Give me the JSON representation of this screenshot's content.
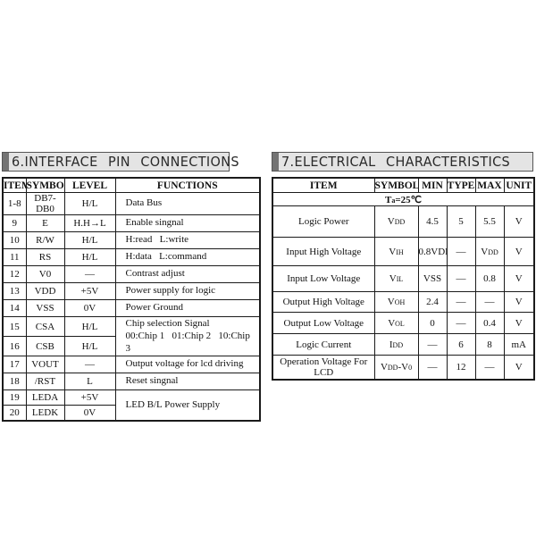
{
  "section6": {
    "title": "6.INTERFACE PIN CONNECTIONS",
    "table": {
      "headers": [
        "ITEM",
        "SYMBOL",
        "LEVEL",
        "FUNCTIONS"
      ],
      "rows": [
        {
          "item": "1-8",
          "symbol": "DB7-DB0",
          "level": "H/L",
          "func": "Data Bus"
        },
        {
          "item": "9",
          "symbol": "E",
          "level": "H.H→L",
          "func": "Enable singnal"
        },
        {
          "item": "10",
          "symbol": "R/W",
          "level": "H/L",
          "func": "H:read   L:write"
        },
        {
          "item": "11",
          "symbol": "RS",
          "level": "H/L",
          "func": "H:data   L:command"
        },
        {
          "item": "12",
          "symbol": "V0",
          "level": "—",
          "func": "Contrast adjust"
        },
        {
          "item": "13",
          "symbol": "VDD",
          "level": "+5V",
          "func": "Power supply for logic"
        },
        {
          "item": "14",
          "symbol": "VSS",
          "level": "0V",
          "func": "Power Ground"
        },
        {
          "item": "15",
          "symbol": "CSA",
          "level": "H/L",
          "func": "Chip selection Signal\n00:Chip 1   01:Chip 2   10:Chip 3",
          "func_rowspan": 2
        },
        {
          "item": "16",
          "symbol": "CSB",
          "level": "H/L"
        },
        {
          "item": "17",
          "symbol": "VOUT",
          "level": "—",
          "func": "Output voltage for lcd driving"
        },
        {
          "item": "18",
          "symbol": "/RST",
          "level": "L",
          "func": "Reset singnal"
        },
        {
          "item": "19",
          "symbol": "LEDA",
          "level": "+5V",
          "func": "LED B/L Power Supply",
          "func_rowspan": 2
        },
        {
          "item": "20",
          "symbol": "LEDK",
          "level": "0V"
        }
      ]
    }
  },
  "section7": {
    "title": "7.ELECTRICAL CHARACTERISTICS",
    "table": {
      "headers": [
        "ITEM",
        "SYMBOL",
        "MIN",
        "TYPE",
        "MAX",
        "UNIT"
      ],
      "condition": "T~a~=25℃",
      "rows": [
        {
          "item": "Logic Power",
          "symbol": "V~DD~",
          "min": "4.5",
          "type": "5",
          "max": "5.5",
          "unit": "V"
        },
        {
          "item": "Input High Voltage",
          "symbol": "V~IH~",
          "min": "0.8VDD",
          "type": "—",
          "max": "V~DD~",
          "unit": "V"
        },
        {
          "item": "Input Low Voltage",
          "symbol": "V~IL~",
          "min": "VSS",
          "type": "—",
          "max": "0.8",
          "unit": "V"
        },
        {
          "item": "Output High Voltage",
          "symbol": "V~OH~",
          "min": "2.4",
          "type": "—",
          "max": "—",
          "unit": "V"
        },
        {
          "item": "Output Low Voltage",
          "symbol": "V~OL~",
          "min": "0",
          "type": "—",
          "max": "0.4",
          "unit": "V"
        },
        {
          "item": "Logic Current",
          "symbol": "I~DD~",
          "min": "—",
          "type": "6",
          "max": "8",
          "unit": "mA"
        },
        {
          "item": "Operation Voltage For LCD",
          "symbol": "V~DD~-V~0~",
          "min": "—",
          "type": "12",
          "max": "—",
          "unit": "V"
        }
      ]
    }
  }
}
